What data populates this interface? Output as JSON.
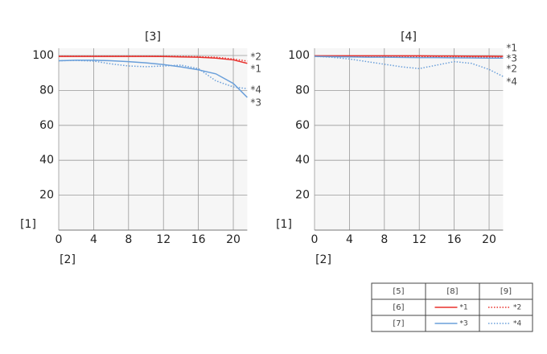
{
  "chart_data": [
    {
      "type": "line",
      "title": "[3]",
      "x_label": "[2]",
      "y_label": "[1]",
      "x": [
        0,
        2,
        4,
        6,
        8,
        10,
        12,
        14,
        16,
        18,
        20,
        21.6
      ],
      "xlim": [
        0,
        21.6
      ],
      "ylim": [
        0,
        100
      ],
      "xticks": [
        0,
        4,
        8,
        12,
        16,
        20
      ],
      "yticks": [
        20,
        40,
        60,
        80,
        100
      ],
      "grid": true,
      "series": [
        {
          "name": "*1",
          "color": "#e8302c",
          "style": "solid",
          "values": [
            99.5,
            99.5,
            99.5,
            99.5,
            99.5,
            99.5,
            99.4,
            99.2,
            99,
            98.5,
            97.5,
            95.5
          ]
        },
        {
          "name": "*2",
          "color": "#e8302c",
          "style": "dotted",
          "values": [
            99.6,
            99.6,
            99.6,
            99.6,
            99.6,
            99.6,
            99.6,
            99.5,
            99.3,
            99,
            98,
            96.8
          ]
        },
        {
          "name": "*3",
          "color": "#6a9fda",
          "style": "solid",
          "values": [
            97,
            97.3,
            97.3,
            97,
            96.5,
            95.8,
            94.8,
            93.5,
            91.8,
            89.5,
            84,
            76
          ]
        },
        {
          "name": "*4",
          "color": "#6a9fda",
          "style": "dotted",
          "values": [
            97,
            97.2,
            96.8,
            95.2,
            94,
            93.6,
            94,
            94.5,
            92.5,
            85.5,
            82,
            81
          ]
        }
      ]
    },
    {
      "type": "line",
      "title": "[4]",
      "x_label": "[2]",
      "y_label": "[1]",
      "x": [
        0,
        2,
        4,
        6,
        8,
        10,
        12,
        14,
        16,
        18,
        20,
        21.6
      ],
      "xlim": [
        0,
        21.6
      ],
      "ylim": [
        0,
        100
      ],
      "xticks": [
        0,
        4,
        8,
        12,
        16,
        20
      ],
      "yticks": [
        20,
        40,
        60,
        80,
        100
      ],
      "grid": true,
      "series": [
        {
          "name": "*1",
          "color": "#e8302c",
          "style": "solid",
          "values": [
            99.8,
            99.8,
            99.8,
            99.8,
            99.8,
            99.8,
            99.8,
            99.7,
            99.7,
            99.6,
            99.6,
            99.5
          ]
        },
        {
          "name": "*2",
          "color": "#e8302c",
          "style": "dotted",
          "values": [
            99.7,
            99.6,
            99.5,
            99.4,
            99.3,
            99.3,
            99.2,
            99.2,
            99.1,
            99.1,
            99,
            99
          ]
        },
        {
          "name": "*3",
          "color": "#6a9fda",
          "style": "solid",
          "values": [
            99.5,
            99.3,
            99.2,
            99,
            99,
            98.9,
            98.8,
            98.8,
            98.7,
            98.6,
            98.5,
            98.5
          ]
        },
        {
          "name": "*4",
          "color": "#6a9fda",
          "style": "dotted",
          "values": [
            99.5,
            99,
            98,
            96.5,
            95,
            93.5,
            92.5,
            94.5,
            96.5,
            95.5,
            92,
            88
          ]
        }
      ]
    }
  ],
  "legend": {
    "column_labels": [
      "[5]",
      "[8]",
      "[9]"
    ],
    "row_labels": [
      "[6]",
      "[7]"
    ]
  }
}
